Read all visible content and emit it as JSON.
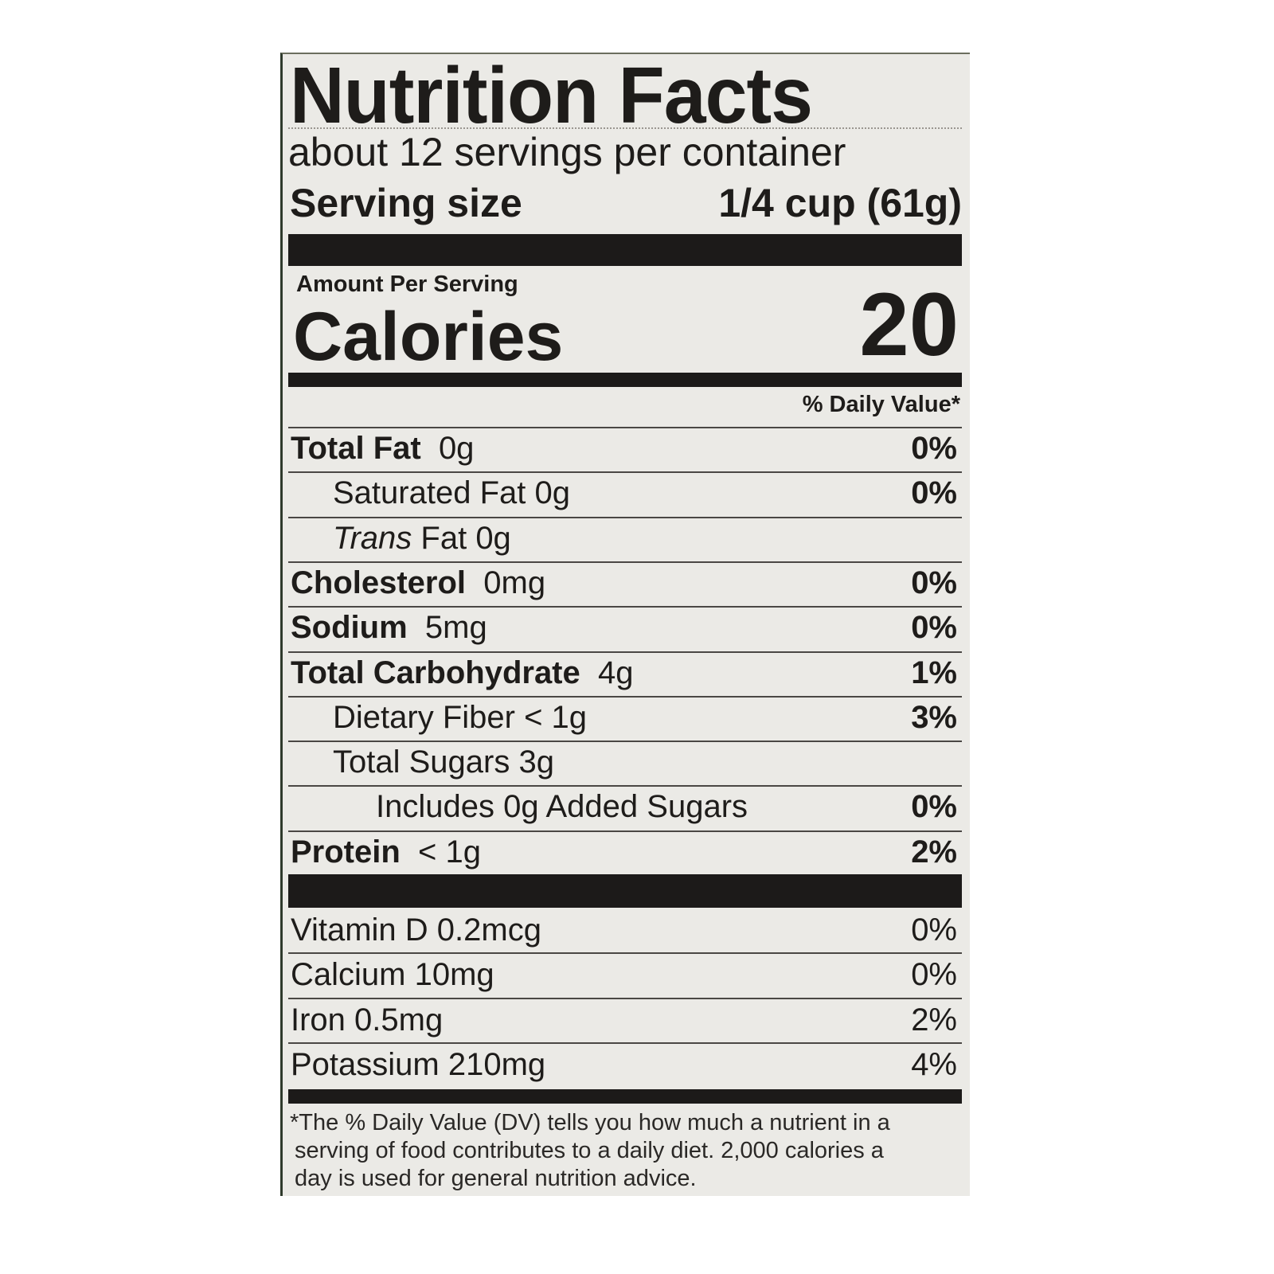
{
  "title": "Nutrition Facts",
  "servings_per_container": "about 12 servings per container",
  "serving_size": {
    "label": "Serving size",
    "value": "1/4 cup (61g)"
  },
  "amount_per_serving": "Amount Per Serving",
  "calories": {
    "label": "Calories",
    "value": "20"
  },
  "daily_value_header": "% Daily Value*",
  "nutrients": [
    {
      "name": "Total Fat",
      "amount": "0g",
      "dv": "0%",
      "bold": true,
      "indent": 0
    },
    {
      "name": "Saturated Fat",
      "amount": "0g",
      "dv": "0%",
      "bold": false,
      "indent": 1
    },
    {
      "name": "Trans",
      "amount": "Fat 0g",
      "dv": "",
      "bold": false,
      "indent": 1,
      "italic": true
    },
    {
      "name": "Cholesterol",
      "amount": "0mg",
      "dv": "0%",
      "bold": true,
      "indent": 0
    },
    {
      "name": "Sodium",
      "amount": "5mg",
      "dv": "0%",
      "bold": true,
      "indent": 0
    },
    {
      "name": "Total Carbohydrate",
      "amount": "4g",
      "dv": "1%",
      "bold": true,
      "indent": 0
    },
    {
      "name": "Dietary Fiber",
      "amount": "< 1g",
      "dv": "3%",
      "bold": false,
      "indent": 1
    },
    {
      "name": "Total Sugars",
      "amount": "3g",
      "dv": "",
      "bold": false,
      "indent": 1
    },
    {
      "name": "Includes 0g Added Sugars",
      "amount": "",
      "dv": "0%",
      "bold": false,
      "indent": 2
    },
    {
      "name": "Protein",
      "amount": "< 1g",
      "dv": "2%",
      "bold": true,
      "indent": 0
    }
  ],
  "vitamins": [
    {
      "name": "Vitamin D 0.2mcg",
      "dv": "0%"
    },
    {
      "name": "Calcium 10mg",
      "dv": "0%"
    },
    {
      "name": "Iron 0.5mg",
      "dv": "2%"
    },
    {
      "name": "Potassium 210mg",
      "dv": "4%"
    }
  ],
  "footnote": [
    "*The % Daily Value (DV) tells you how much a nutrient in a",
    " serving of food contributes to a daily diet. 2,000 calories a",
    " day is used for general nutrition advice."
  ]
}
